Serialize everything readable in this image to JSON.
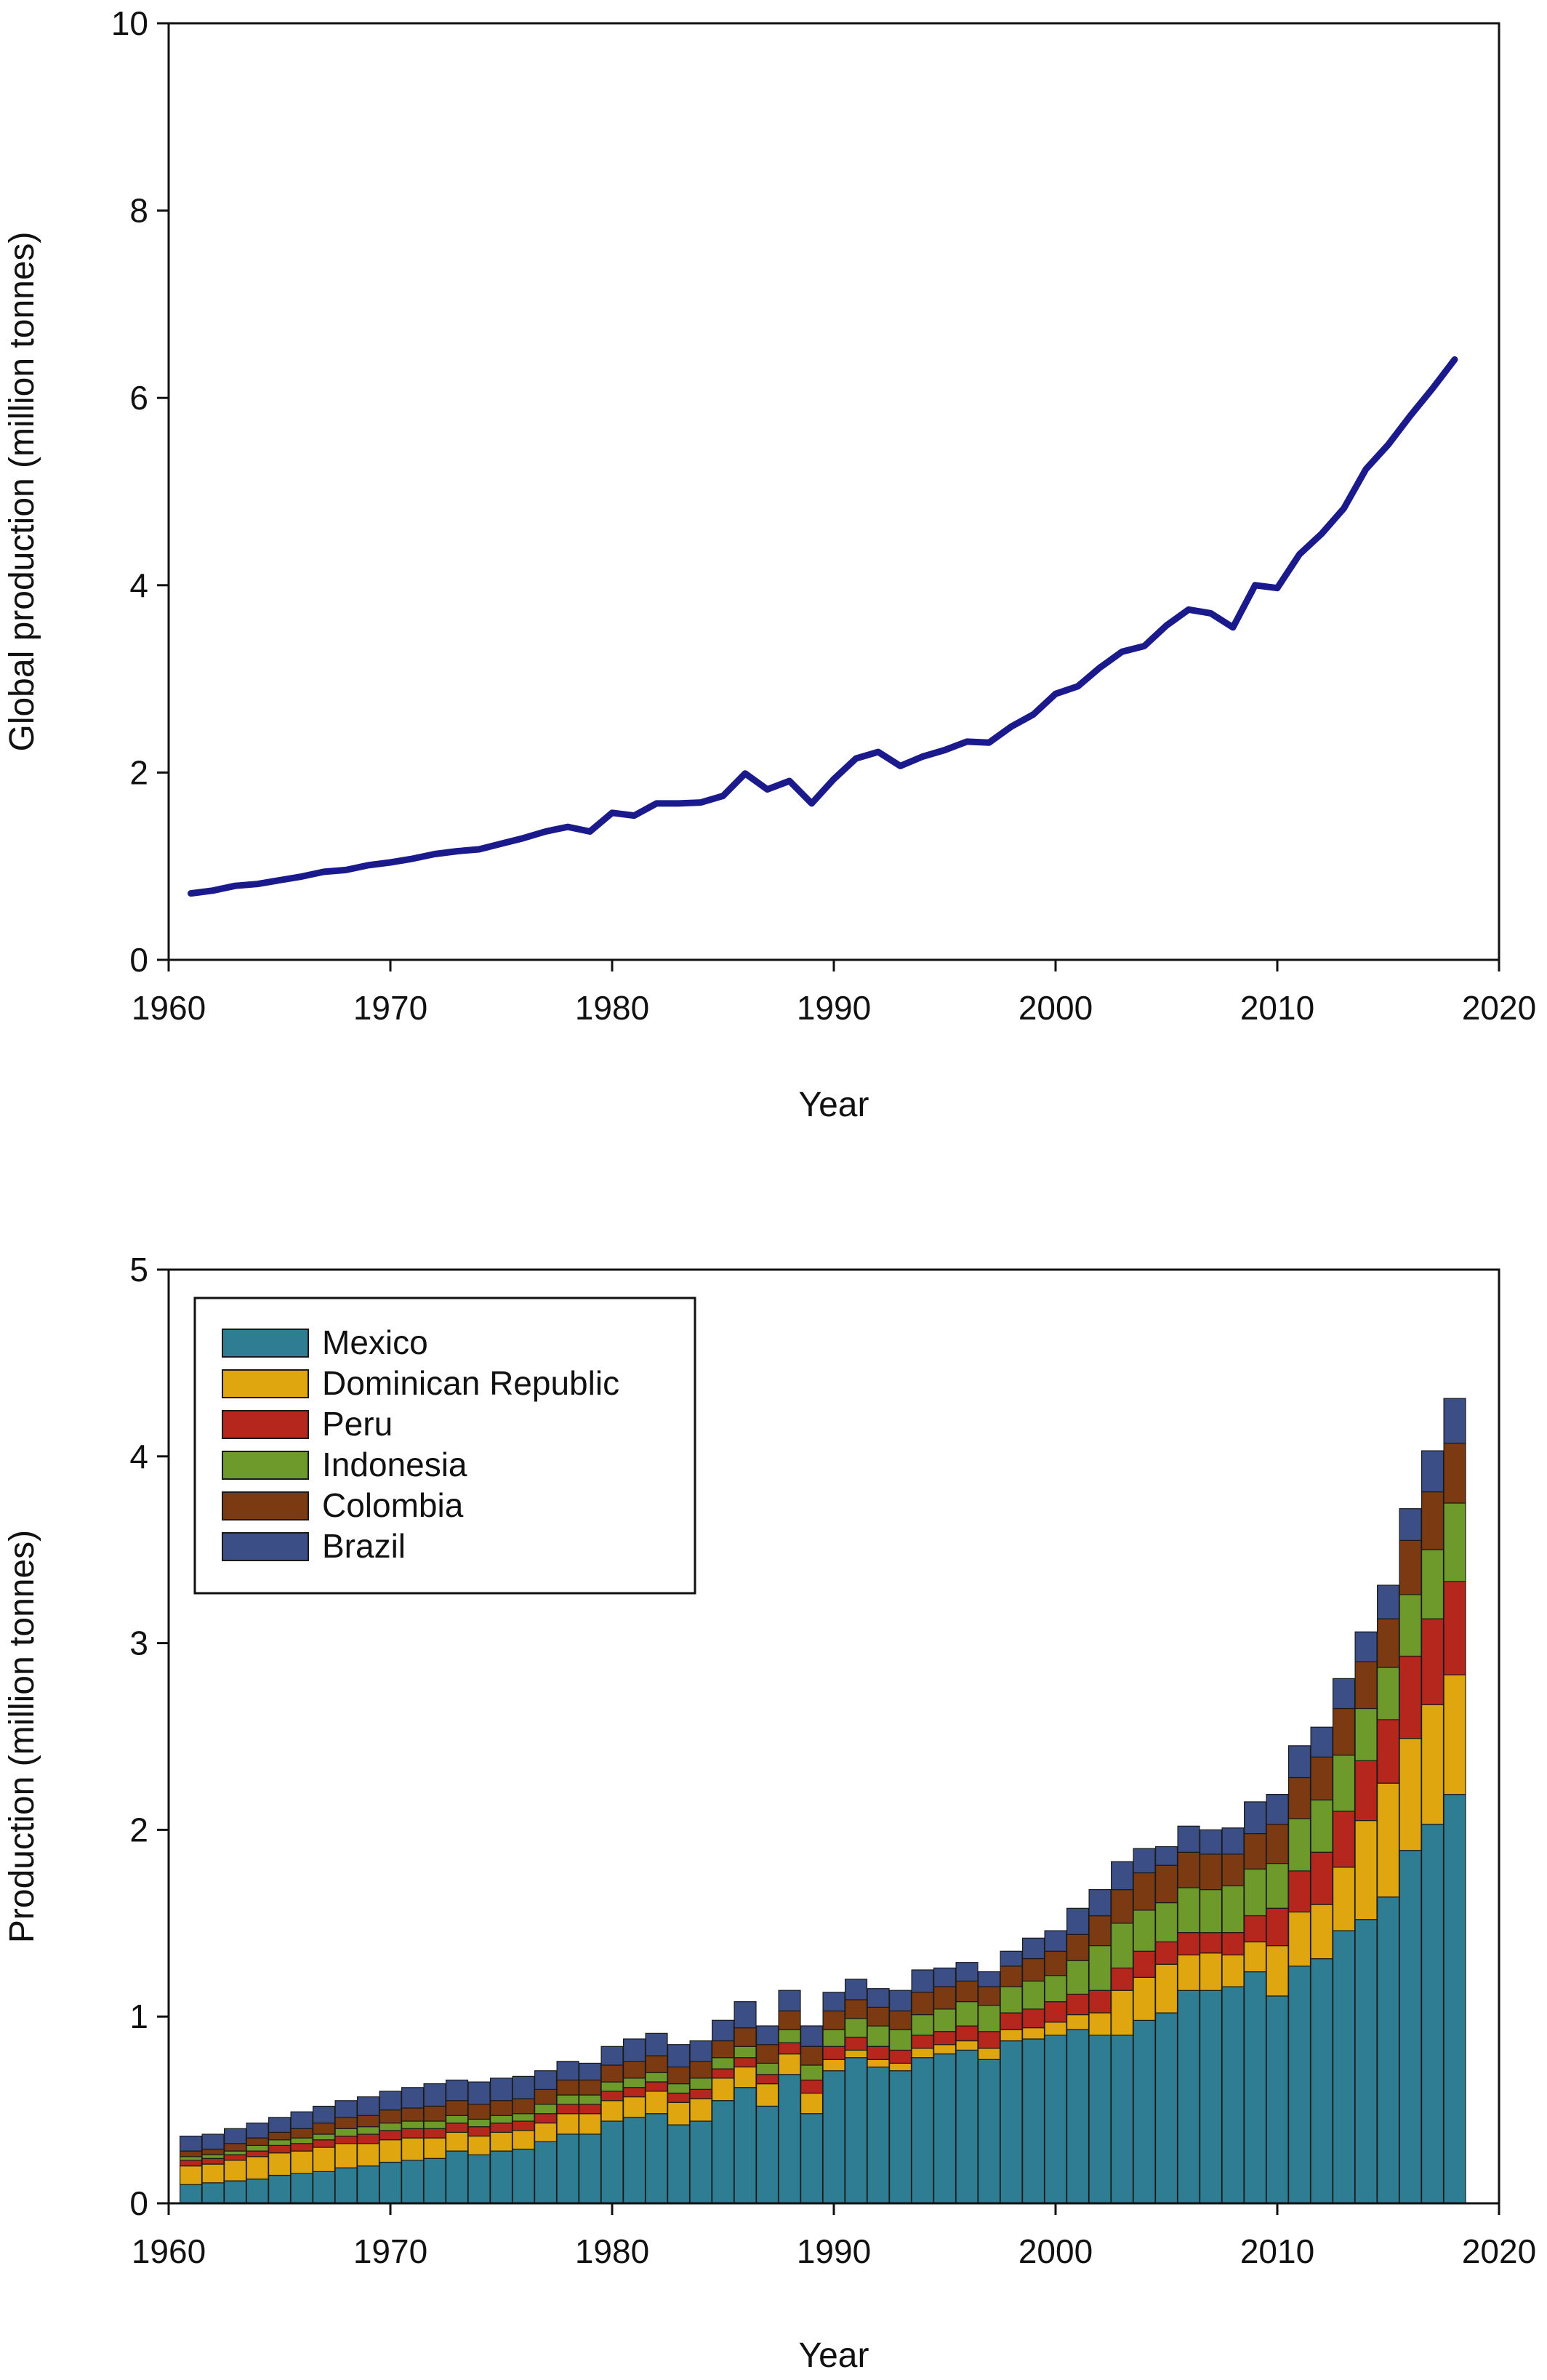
{
  "chart_data": [
    {
      "type": "line",
      "xlabel": "Year",
      "ylabel": "Global production (million tonnes)",
      "xlim": [
        1960,
        2020
      ],
      "ylim": [
        0,
        10
      ],
      "xticks": [
        1960,
        1970,
        1980,
        1990,
        2000,
        2010,
        2020
      ],
      "yticks": [
        0,
        2,
        4,
        6,
        8,
        10
      ],
      "grid": false,
      "colors": {
        "line": "#1a1a8c"
      },
      "series": [
        {
          "x": [
            1961,
            1962,
            1963,
            1964,
            1965,
            1966,
            1967,
            1968,
            1969,
            1970,
            1971,
            1972,
            1973,
            1974,
            1975,
            1976,
            1977,
            1978,
            1979,
            1980,
            1981,
            1982,
            1983,
            1984,
            1985,
            1986,
            1987,
            1988,
            1989,
            1990,
            1991,
            1992,
            1993,
            1994,
            1995,
            1996,
            1997,
            1998,
            1999,
            2000,
            2001,
            2002,
            2003,
            2004,
            2005,
            2006,
            2007,
            2008,
            2009,
            2010,
            2011,
            2012,
            2013,
            2014,
            2015,
            2016,
            2017,
            2018
          ],
          "values": [
            0.71,
            0.74,
            0.79,
            0.81,
            0.85,
            0.89,
            0.94,
            0.96,
            1.01,
            1.04,
            1.08,
            1.13,
            1.16,
            1.18,
            1.24,
            1.3,
            1.37,
            1.42,
            1.37,
            1.57,
            1.54,
            1.67,
            1.67,
            1.68,
            1.75,
            1.99,
            1.82,
            1.91,
            1.67,
            1.93,
            2.15,
            2.22,
            2.07,
            2.17,
            2.24,
            2.33,
            2.32,
            2.49,
            2.62,
            2.84,
            2.92,
            3.12,
            3.29,
            3.35,
            3.57,
            3.74,
            3.7,
            3.55,
            4.0,
            3.97,
            4.33,
            4.55,
            4.82,
            5.24,
            5.5,
            5.81,
            6.1,
            6.41
          ]
        }
      ]
    },
    {
      "type": "bar",
      "stacked": true,
      "xlabel": "Year",
      "ylabel": "Production (million tonnes)",
      "xlim": [
        1960,
        2020
      ],
      "ylim": [
        0,
        5
      ],
      "xticks": [
        1960,
        1970,
        1980,
        1990,
        2000,
        2010,
        2020
      ],
      "yticks": [
        0,
        1,
        2,
        3,
        4,
        5
      ],
      "grid": false,
      "legend_position": "top-left",
      "categories": [
        1961,
        1962,
        1963,
        1964,
        1965,
        1966,
        1967,
        1968,
        1969,
        1970,
        1971,
        1972,
        1973,
        1974,
        1975,
        1976,
        1977,
        1978,
        1979,
        1980,
        1981,
        1982,
        1983,
        1984,
        1985,
        1986,
        1987,
        1988,
        1989,
        1990,
        1991,
        1992,
        1993,
        1994,
        1995,
        1996,
        1997,
        1998,
        1999,
        2000,
        2001,
        2002,
        2003,
        2004,
        2005,
        2006,
        2007,
        2008,
        2009,
        2010,
        2011,
        2012,
        2013,
        2014,
        2015,
        2016,
        2017,
        2018
      ],
      "series": [
        {
          "name": "Mexico",
          "color": "#2e7d92",
          "values": [
            0.1,
            0.11,
            0.12,
            0.13,
            0.15,
            0.16,
            0.17,
            0.19,
            0.2,
            0.22,
            0.23,
            0.24,
            0.28,
            0.26,
            0.28,
            0.29,
            0.33,
            0.37,
            0.37,
            0.44,
            0.46,
            0.48,
            0.42,
            0.44,
            0.55,
            0.62,
            0.52,
            0.69,
            0.48,
            0.71,
            0.78,
            0.73,
            0.71,
            0.78,
            0.8,
            0.82,
            0.77,
            0.87,
            0.88,
            0.9,
            0.93,
            0.9,
            0.9,
            0.98,
            1.02,
            1.14,
            1.14,
            1.16,
            1.24,
            1.11,
            1.27,
            1.31,
            1.46,
            1.52,
            1.64,
            1.89,
            2.03,
            2.19
          ]
        },
        {
          "name": "Dominican Republic",
          "color": "#e0a610",
          "values": [
            0.1,
            0.1,
            0.11,
            0.12,
            0.12,
            0.12,
            0.13,
            0.13,
            0.12,
            0.12,
            0.12,
            0.11,
            0.1,
            0.1,
            0.1,
            0.1,
            0.1,
            0.11,
            0.11,
            0.11,
            0.11,
            0.12,
            0.12,
            0.12,
            0.12,
            0.11,
            0.12,
            0.11,
            0.11,
            0.06,
            0.04,
            0.04,
            0.04,
            0.05,
            0.05,
            0.05,
            0.06,
            0.06,
            0.06,
            0.07,
            0.08,
            0.12,
            0.24,
            0.23,
            0.26,
            0.19,
            0.2,
            0.17,
            0.16,
            0.27,
            0.29,
            0.29,
            0.34,
            0.53,
            0.61,
            0.6,
            0.64,
            0.64
          ]
        },
        {
          "name": "Peru",
          "color": "#b5261c",
          "values": [
            0.03,
            0.03,
            0.03,
            0.03,
            0.04,
            0.04,
            0.04,
            0.04,
            0.05,
            0.05,
            0.05,
            0.05,
            0.05,
            0.05,
            0.05,
            0.05,
            0.05,
            0.05,
            0.05,
            0.05,
            0.05,
            0.05,
            0.05,
            0.05,
            0.05,
            0.05,
            0.05,
            0.06,
            0.07,
            0.07,
            0.07,
            0.07,
            0.07,
            0.07,
            0.07,
            0.08,
            0.09,
            0.09,
            0.1,
            0.11,
            0.11,
            0.12,
            0.12,
            0.14,
            0.12,
            0.12,
            0.11,
            0.12,
            0.14,
            0.2,
            0.22,
            0.28,
            0.3,
            0.32,
            0.34,
            0.44,
            0.46,
            0.5
          ]
        },
        {
          "name": "Indonesia",
          "color": "#6e9a2c",
          "values": [
            0.02,
            0.02,
            0.02,
            0.03,
            0.03,
            0.03,
            0.03,
            0.04,
            0.04,
            0.04,
            0.04,
            0.04,
            0.04,
            0.04,
            0.04,
            0.04,
            0.05,
            0.05,
            0.05,
            0.05,
            0.05,
            0.05,
            0.05,
            0.06,
            0.06,
            0.06,
            0.06,
            0.07,
            0.08,
            0.09,
            0.1,
            0.11,
            0.11,
            0.11,
            0.12,
            0.13,
            0.14,
            0.14,
            0.15,
            0.14,
            0.18,
            0.24,
            0.24,
            0.22,
            0.21,
            0.24,
            0.23,
            0.25,
            0.25,
            0.24,
            0.28,
            0.28,
            0.3,
            0.28,
            0.28,
            0.33,
            0.37,
            0.42
          ]
        },
        {
          "name": "Colombia",
          "color": "#7b3a12",
          "values": [
            0.03,
            0.03,
            0.04,
            0.04,
            0.04,
            0.05,
            0.06,
            0.06,
            0.06,
            0.07,
            0.07,
            0.08,
            0.08,
            0.08,
            0.08,
            0.08,
            0.08,
            0.08,
            0.08,
            0.09,
            0.09,
            0.09,
            0.09,
            0.09,
            0.09,
            0.1,
            0.1,
            0.1,
            0.1,
            0.1,
            0.1,
            0.1,
            0.1,
            0.12,
            0.12,
            0.11,
            0.1,
            0.11,
            0.12,
            0.13,
            0.14,
            0.16,
            0.18,
            0.2,
            0.2,
            0.19,
            0.19,
            0.17,
            0.19,
            0.21,
            0.22,
            0.23,
            0.25,
            0.25,
            0.26,
            0.29,
            0.31,
            0.32
          ]
        },
        {
          "name": "Brazil",
          "color": "#3b4e85",
          "values": [
            0.08,
            0.08,
            0.08,
            0.08,
            0.08,
            0.09,
            0.09,
            0.09,
            0.1,
            0.1,
            0.11,
            0.12,
            0.11,
            0.12,
            0.12,
            0.12,
            0.1,
            0.1,
            0.09,
            0.1,
            0.12,
            0.12,
            0.12,
            0.11,
            0.11,
            0.14,
            0.1,
            0.11,
            0.11,
            0.1,
            0.11,
            0.1,
            0.11,
            0.12,
            0.1,
            0.1,
            0.08,
            0.08,
            0.11,
            0.11,
            0.14,
            0.14,
            0.15,
            0.13,
            0.1,
            0.14,
            0.13,
            0.14,
            0.17,
            0.16,
            0.17,
            0.16,
            0.16,
            0.16,
            0.18,
            0.17,
            0.22,
            0.24
          ]
        }
      ]
    }
  ]
}
